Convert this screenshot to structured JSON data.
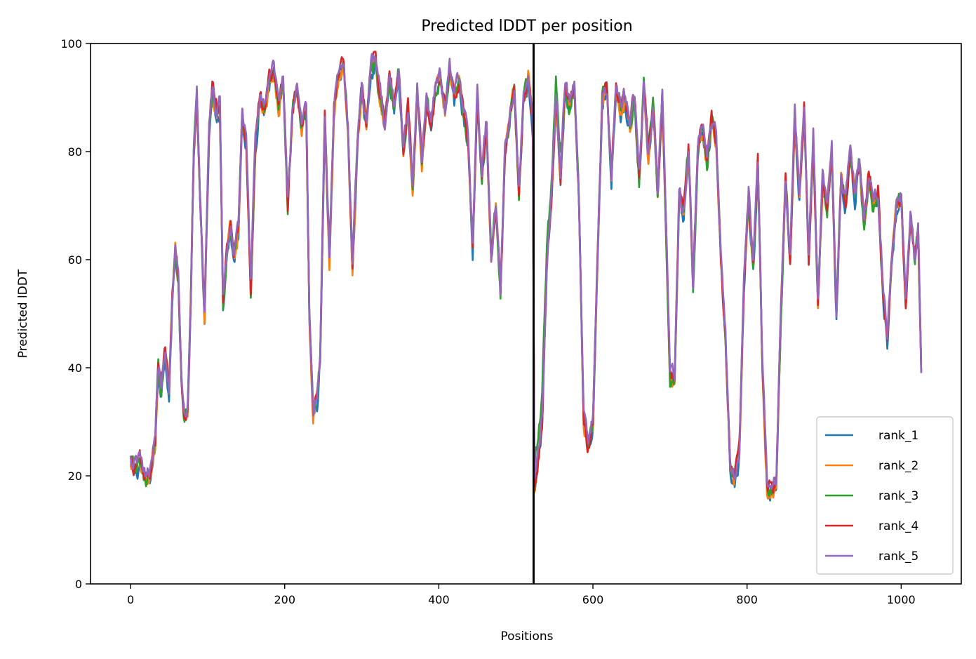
{
  "chart_data": {
    "type": "line",
    "title": "Predicted lDDT per position",
    "xlabel": "Positions",
    "ylabel": "Predicted lDDT",
    "xlim": [
      -52,
      1078
    ],
    "ylim": [
      0,
      100
    ],
    "xticks": [
      0,
      200,
      400,
      600,
      800,
      1000
    ],
    "yticks": [
      0,
      20,
      40,
      60,
      80,
      100
    ],
    "grid": false,
    "legend_position": "lower-right",
    "chain_boundary_x": 523,
    "x_start": 0,
    "x_end": 1026,
    "series_colors": [
      "#1f77b4",
      "#ff7f0e",
      "#2ca02c",
      "#d62728",
      "#9467bd"
    ],
    "legend_labels": [
      "rank_1",
      "rank_2",
      "rank_3",
      "rank_4",
      "rank_5"
    ],
    "profile": [
      [
        0,
        22
      ],
      [
        8,
        21
      ],
      [
        12,
        23
      ],
      [
        18,
        19
      ],
      [
        25,
        20
      ],
      [
        32,
        26
      ],
      [
        36,
        40
      ],
      [
        40,
        36
      ],
      [
        45,
        44
      ],
      [
        50,
        35
      ],
      [
        54,
        52
      ],
      [
        58,
        62
      ],
      [
        62,
        56
      ],
      [
        66,
        38
      ],
      [
        70,
        31
      ],
      [
        74,
        32
      ],
      [
        78,
        52
      ],
      [
        82,
        80
      ],
      [
        86,
        90
      ],
      [
        90,
        72
      ],
      [
        96,
        50
      ],
      [
        102,
        85
      ],
      [
        106,
        92
      ],
      [
        110,
        88
      ],
      [
        116,
        88
      ],
      [
        120,
        52
      ],
      [
        125,
        62
      ],
      [
        130,
        66
      ],
      [
        134,
        60
      ],
      [
        140,
        66
      ],
      [
        145,
        88
      ],
      [
        150,
        82
      ],
      [
        156,
        54
      ],
      [
        162,
        82
      ],
      [
        168,
        90
      ],
      [
        174,
        88
      ],
      [
        180,
        93
      ],
      [
        186,
        95
      ],
      [
        192,
        88
      ],
      [
        198,
        93
      ],
      [
        204,
        70
      ],
      [
        210,
        88
      ],
      [
        216,
        92
      ],
      [
        222,
        85
      ],
      [
        228,
        88
      ],
      [
        232,
        50
      ],
      [
        237,
        32
      ],
      [
        242,
        34
      ],
      [
        246,
        42
      ],
      [
        252,
        86
      ],
      [
        258,
        60
      ],
      [
        264,
        88
      ],
      [
        270,
        95
      ],
      [
        276,
        96
      ],
      [
        282,
        85
      ],
      [
        288,
        58
      ],
      [
        294,
        80
      ],
      [
        300,
        92
      ],
      [
        306,
        84
      ],
      [
        312,
        96
      ],
      [
        318,
        97
      ],
      [
        324,
        90
      ],
      [
        330,
        85
      ],
      [
        336,
        94
      ],
      [
        342,
        88
      ],
      [
        348,
        95
      ],
      [
        354,
        80
      ],
      [
        360,
        88
      ],
      [
        366,
        74
      ],
      [
        372,
        92
      ],
      [
        378,
        78
      ],
      [
        384,
        90
      ],
      [
        390,
        85
      ],
      [
        396,
        92
      ],
      [
        402,
        94
      ],
      [
        408,
        88
      ],
      [
        414,
        95
      ],
      [
        420,
        90
      ],
      [
        426,
        93
      ],
      [
        432,
        87
      ],
      [
        438,
        82
      ],
      [
        444,
        62
      ],
      [
        450,
        90
      ],
      [
        456,
        75
      ],
      [
        462,
        85
      ],
      [
        468,
        60
      ],
      [
        474,
        70
      ],
      [
        480,
        54
      ],
      [
        486,
        80
      ],
      [
        492,
        86
      ],
      [
        498,
        92
      ],
      [
        504,
        72
      ],
      [
        510,
        90
      ],
      [
        516,
        94
      ],
      [
        522,
        85
      ],
      [
        524,
        18
      ],
      [
        528,
        22
      ],
      [
        534,
        30
      ],
      [
        540,
        58
      ],
      [
        546,
        70
      ],
      [
        552,
        90
      ],
      [
        558,
        75
      ],
      [
        564,
        92
      ],
      [
        570,
        88
      ],
      [
        576,
        92
      ],
      [
        582,
        70
      ],
      [
        588,
        30
      ],
      [
        594,
        25
      ],
      [
        600,
        30
      ],
      [
        606,
        60
      ],
      [
        612,
        90
      ],
      [
        618,
        92
      ],
      [
        624,
        75
      ],
      [
        630,
        92
      ],
      [
        636,
        88
      ],
      [
        642,
        90
      ],
      [
        648,
        85
      ],
      [
        654,
        90
      ],
      [
        660,
        75
      ],
      [
        666,
        92
      ],
      [
        672,
        80
      ],
      [
        678,
        88
      ],
      [
        684,
        72
      ],
      [
        690,
        90
      ],
      [
        696,
        60
      ],
      [
        700,
        38
      ],
      [
        706,
        38
      ],
      [
        712,
        72
      ],
      [
        718,
        68
      ],
      [
        724,
        80
      ],
      [
        730,
        55
      ],
      [
        736,
        80
      ],
      [
        742,
        85
      ],
      [
        748,
        78
      ],
      [
        754,
        86
      ],
      [
        760,
        82
      ],
      [
        766,
        60
      ],
      [
        772,
        45
      ],
      [
        778,
        22
      ],
      [
        784,
        20
      ],
      [
        790,
        24
      ],
      [
        796,
        55
      ],
      [
        802,
        72
      ],
      [
        808,
        58
      ],
      [
        814,
        78
      ],
      [
        820,
        40
      ],
      [
        826,
        18
      ],
      [
        832,
        17
      ],
      [
        838,
        19
      ],
      [
        844,
        50
      ],
      [
        850,
        75
      ],
      [
        856,
        60
      ],
      [
        862,
        86
      ],
      [
        868,
        72
      ],
      [
        874,
        88
      ],
      [
        880,
        60
      ],
      [
        886,
        82
      ],
      [
        892,
        52
      ],
      [
        898,
        75
      ],
      [
        904,
        70
      ],
      [
        910,
        80
      ],
      [
        916,
        50
      ],
      [
        922,
        75
      ],
      [
        928,
        70
      ],
      [
        934,
        80
      ],
      [
        940,
        72
      ],
      [
        946,
        78
      ],
      [
        952,
        66
      ],
      [
        958,
        75
      ],
      [
        964,
        70
      ],
      [
        970,
        72
      ],
      [
        976,
        55
      ],
      [
        982,
        45
      ],
      [
        988,
        60
      ],
      [
        994,
        70
      ],
      [
        1000,
        72
      ],
      [
        1006,
        52
      ],
      [
        1012,
        68
      ],
      [
        1018,
        60
      ],
      [
        1022,
        66
      ],
      [
        1026,
        40
      ]
    ]
  }
}
